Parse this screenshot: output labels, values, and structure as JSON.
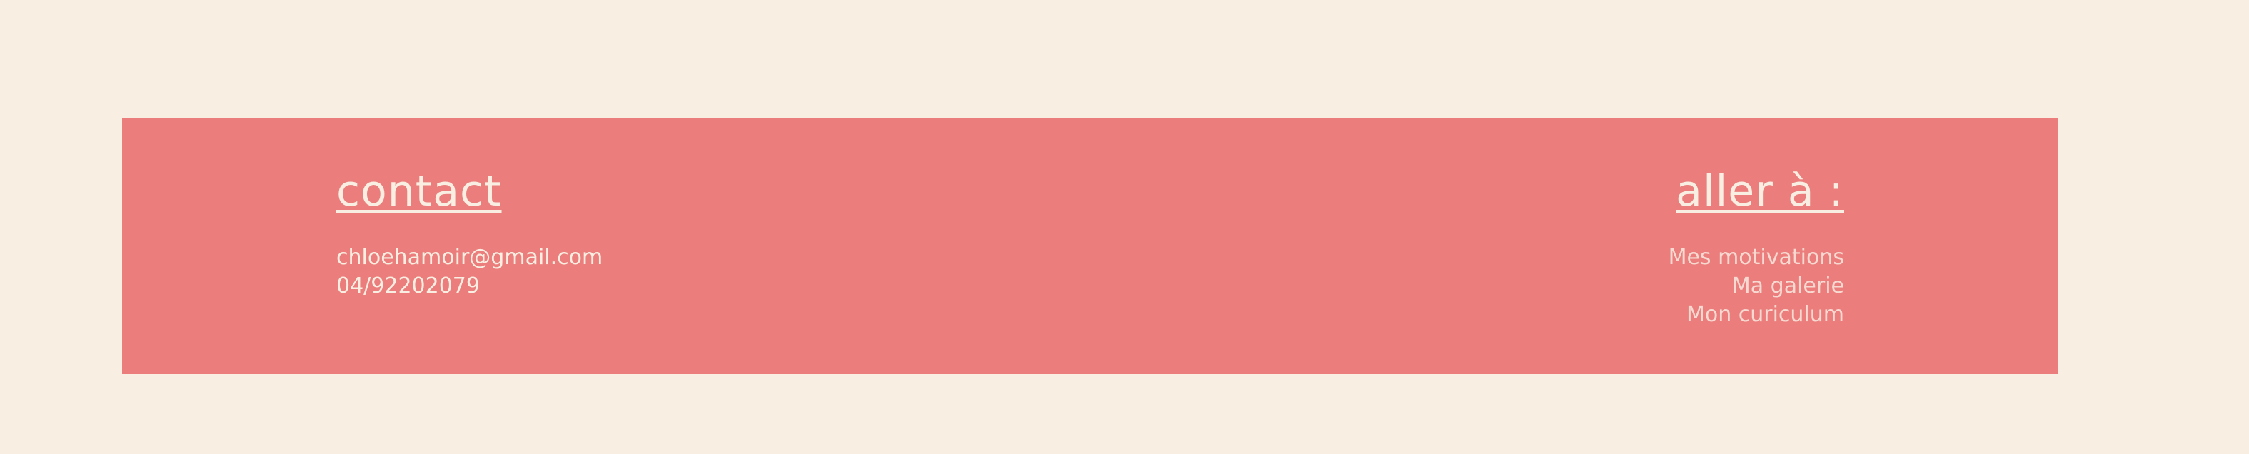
{
  "colors": {
    "background": "#f8eee2",
    "footer": "#eb7e7c",
    "text": "#f8eee2",
    "link_text": "#f6d9d1"
  },
  "footer": {
    "contact": {
      "heading": "contact",
      "email": "chloehamoir@gmail.com",
      "phone": "04/92202079"
    },
    "navigation": {
      "heading": "aller à :",
      "links": [
        "Mes motivations",
        "Ma galerie",
        "Mon curiculum"
      ]
    }
  }
}
